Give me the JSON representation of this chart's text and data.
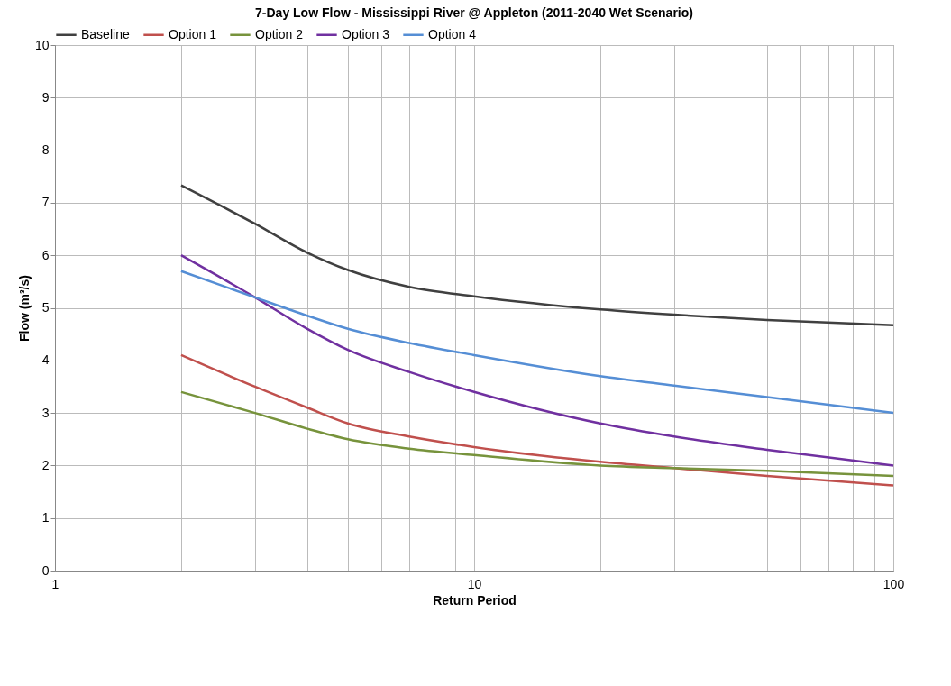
{
  "chart_data": {
    "type": "line",
    "title": "7-Day Low Flow - Mississippi River @  Appleton (2011-2040 Wet Scenario)",
    "xlabel": "Return Period",
    "ylabel": "Flow (m³/s)",
    "x": [
      2,
      3,
      4,
      5,
      7,
      10,
      20,
      30,
      50,
      100
    ],
    "series": [
      {
        "name": "Baseline",
        "color": "#404040",
        "values": [
          7.33,
          6.6,
          6.05,
          5.72,
          5.4,
          5.22,
          4.97,
          4.87,
          4.77,
          4.67
        ]
      },
      {
        "name": "Option 1",
        "color": "#c0504d",
        "values": [
          4.1,
          3.5,
          3.1,
          2.8,
          2.55,
          2.35,
          2.07,
          1.95,
          1.8,
          1.62
        ]
      },
      {
        "name": "Option 2",
        "color": "#77933c",
        "values": [
          3.4,
          3.0,
          2.7,
          2.5,
          2.32,
          2.2,
          2.0,
          1.95,
          1.9,
          1.8
        ]
      },
      {
        "name": "Option 3",
        "color": "#7030a0",
        "values": [
          6.0,
          5.2,
          4.6,
          4.2,
          3.78,
          3.4,
          2.8,
          2.55,
          2.3,
          2.0
        ]
      },
      {
        "name": "Option 4",
        "color": "#558ed5",
        "values": [
          5.7,
          5.2,
          4.85,
          4.6,
          4.33,
          4.1,
          3.7,
          3.52,
          3.3,
          3.0
        ]
      }
    ],
    "log": "x",
    "xlim": [
      1,
      100
    ],
    "xticks": [
      1,
      {
        "value": 2,
        "label": null
      },
      {
        "value": 3,
        "label": null
      },
      {
        "value": 4,
        "label": null
      },
      {
        "value": 5,
        "label": null
      },
      {
        "value": 6,
        "label": null
      },
      {
        "value": 7,
        "label": null
      },
      {
        "value": 8,
        "label": null
      },
      {
        "value": 9,
        "label": null
      },
      10,
      {
        "value": 20,
        "label": null
      },
      {
        "value": 30,
        "label": null
      },
      {
        "value": 40,
        "label": null
      },
      {
        "value": 50,
        "label": null
      },
      {
        "value": 60,
        "label": null
      },
      {
        "value": 70,
        "label": null
      },
      {
        "value": 80,
        "label": null
      },
      {
        "value": 90,
        "label": null
      },
      100
    ],
    "ylim": [
      0,
      10
    ],
    "yticks": [
      0,
      1,
      2,
      3,
      4,
      5,
      6,
      7,
      8,
      9,
      10
    ],
    "grid": true,
    "legend": "top",
    "marker": "none",
    "line_style": "solid"
  }
}
